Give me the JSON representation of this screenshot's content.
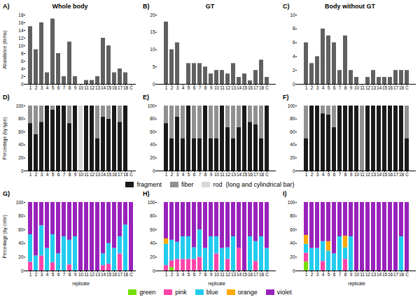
{
  "chart_data": [
    {
      "type": "bar",
      "title": "Whole body",
      "annotations": [
        {
          "text": "A)"
        }
      ],
      "ylabel": "Abundance (items)",
      "categories": [
        "1",
        "2",
        "3",
        "4",
        "5",
        "6",
        "7",
        "8",
        "9",
        "10",
        "11",
        "12",
        "13",
        "14",
        "15",
        "16",
        "17",
        "18",
        "C"
      ],
      "values": [
        15,
        9,
        16,
        3,
        17,
        8,
        2,
        11,
        2,
        0,
        1,
        1,
        2,
        12,
        10,
        3,
        4,
        3,
        0
      ],
      "color": "#606060",
      "ylim": [
        0,
        18
      ],
      "yticks": [
        0,
        2,
        4,
        6,
        8,
        10,
        12,
        14,
        16,
        18
      ],
      "grid": false
    },
    {
      "type": "bar",
      "title": "GT",
      "annotations": [
        {
          "text": "B)"
        }
      ],
      "categories": [
        "1",
        "2",
        "3",
        "4",
        "5",
        "6",
        "7",
        "8",
        "9",
        "10",
        "11",
        "12",
        "13",
        "14",
        "15",
        "16",
        "17",
        "18",
        "C"
      ],
      "values": [
        18,
        10,
        12,
        0,
        6,
        6,
        6,
        5,
        3,
        4,
        4,
        3,
        6,
        2,
        3,
        1,
        4,
        7,
        2
      ],
      "color": "#606060",
      "ylim": [
        0,
        20
      ],
      "yticks": [
        0,
        5,
        10,
        15,
        20
      ],
      "grid": false
    },
    {
      "type": "bar",
      "title": "Body without GT",
      "annotations": [
        {
          "text": "C)"
        }
      ],
      "categories": [
        "1",
        "2",
        "3",
        "4",
        "5",
        "6",
        "7",
        "8",
        "9",
        "10",
        "11",
        "12",
        "13",
        "14",
        "15",
        "16",
        "17",
        "18",
        "C"
      ],
      "values": [
        6,
        3,
        4,
        8,
        7,
        6,
        2,
        7,
        2,
        1,
        0,
        1,
        2,
        1,
        1,
        1,
        2,
        2,
        2
      ],
      "color": "#606060",
      "ylim": [
        0,
        10
      ],
      "yticks": [
        0,
        2,
        4,
        6,
        8,
        10
      ],
      "grid": false
    },
    {
      "type": "bar",
      "annotations": [
        {
          "text": "D)"
        }
      ],
      "ylabel": "Percentage (by type)",
      "stacked": true,
      "legend": "bottom",
      "categories": [
        "1",
        "2",
        "3",
        "4",
        "5",
        "6",
        "7",
        "8",
        "9",
        "10",
        "11",
        "12",
        "13",
        "14",
        "15",
        "16",
        "17",
        "18",
        "C"
      ],
      "series": [
        {
          "name": "fragment",
          "color": "#1a1a1a",
          "values": [
            73,
            56,
            75,
            100,
            94,
            100,
            100,
            73,
            100,
            0,
            100,
            100,
            50,
            83,
            80,
            100,
            75,
            100,
            0
          ]
        },
        {
          "name": "fiber",
          "color": "#909090",
          "values": [
            27,
            44,
            25,
            0,
            6,
            0,
            0,
            27,
            0,
            0,
            0,
            0,
            50,
            17,
            20,
            0,
            25,
            0,
            0
          ]
        },
        {
          "name": "rod  (long and cylindrical bar)",
          "color": "#d8d8d8",
          "values": [
            0,
            0,
            0,
            0,
            0,
            0,
            0,
            0,
            0,
            100,
            0,
            0,
            0,
            0,
            0,
            0,
            0,
            0,
            0
          ]
        }
      ],
      "ylim": [
        0,
        100
      ],
      "yticks": [
        0,
        20,
        40,
        60,
        80,
        100
      ],
      "grid": false
    },
    {
      "type": "bar",
      "annotations": [
        {
          "text": "E)"
        }
      ],
      "stacked": true,
      "legend": "bottom",
      "categories": [
        "1",
        "2",
        "3",
        "4",
        "5",
        "6",
        "7",
        "8",
        "9",
        "10",
        "11",
        "12",
        "13",
        "14",
        "15",
        "16",
        "17",
        "18",
        "C"
      ],
      "series": [
        {
          "name": "fragment",
          "color": "#1a1a1a",
          "values": [
            73,
            50,
            83,
            50,
            100,
            50,
            50,
            100,
            50,
            50,
            100,
            67,
            50,
            67,
            100,
            75,
            71,
            50,
            100
          ]
        },
        {
          "name": "fiber",
          "color": "#909090",
          "values": [
            27,
            50,
            17,
            50,
            0,
            50,
            50,
            0,
            50,
            50,
            0,
            33,
            50,
            33,
            0,
            25,
            29,
            50,
            0
          ]
        },
        {
          "name": "rod  (long and cylindrical bar)",
          "color": "#d8d8d8",
          "values": [
            0,
            0,
            0,
            0,
            0,
            0,
            0,
            0,
            0,
            0,
            0,
            0,
            0,
            0,
            0,
            0,
            0,
            0,
            0
          ]
        }
      ],
      "ylim": [
        0,
        100
      ],
      "yticks": [
        0,
        20,
        40,
        60,
        80,
        100
      ],
      "grid": false
    },
    {
      "type": "bar",
      "annotations": [
        {
          "text": "F)"
        }
      ],
      "stacked": true,
      "legend": "bottom",
      "categories": [
        "1",
        "2",
        "3",
        "4",
        "5",
        "6",
        "7",
        "8",
        "9",
        "10",
        "11",
        "12",
        "13",
        "14",
        "15",
        "16",
        "17",
        "18",
        "C"
      ],
      "series": [
        {
          "name": "fragment",
          "color": "#1a1a1a",
          "values": [
            50,
            100,
            100,
            88,
            86,
            67,
            100,
            100,
            100,
            100,
            0,
            100,
            100,
            100,
            100,
            100,
            100,
            100,
            50
          ]
        },
        {
          "name": "fiber",
          "color": "#909090",
          "values": [
            50,
            0,
            0,
            12,
            14,
            33,
            0,
            0,
            0,
            0,
            100,
            0,
            0,
            0,
            0,
            0,
            0,
            0,
            50
          ]
        },
        {
          "name": "rod  (long and cylindrical bar)",
          "color": "#d8d8d8",
          "values": [
            0,
            0,
            0,
            0,
            0,
            0,
            0,
            0,
            0,
            0,
            0,
            0,
            0,
            0,
            0,
            0,
            0,
            0,
            0
          ]
        }
      ],
      "ylim": [
        0,
        100
      ],
      "yticks": [
        0,
        20,
        40,
        60,
        80,
        100
      ],
      "grid": false
    },
    {
      "type": "bar",
      "annotations": [
        {
          "text": "G)"
        }
      ],
      "ylabel": "Percentage (by color)",
      "xlabel": "replicate",
      "stacked": true,
      "legend": "bottom",
      "categories": [
        "1",
        "2",
        "3",
        "4",
        "5",
        "6",
        "7",
        "8",
        "9",
        "10",
        "11",
        "12",
        "13",
        "14",
        "15",
        "16",
        "17",
        "18",
        "C"
      ],
      "series": [
        {
          "name": "green",
          "color": "#77dd00",
          "values": [
            0,
            0,
            0,
            0,
            0,
            0,
            0,
            0,
            0,
            0,
            0,
            0,
            0,
            0,
            0,
            0,
            0,
            0,
            0
          ]
        },
        {
          "name": "pink",
          "color": "#ff44aa",
          "values": [
            13,
            0,
            22,
            0,
            12,
            0,
            0,
            9,
            0,
            0,
            0,
            0,
            0,
            8,
            10,
            0,
            25,
            0,
            0
          ]
        },
        {
          "name": "blue",
          "color": "#22ccee",
          "values": [
            40,
            22,
            44,
            33,
            41,
            25,
            50,
            36,
            50,
            0,
            0,
            0,
            0,
            17,
            30,
            33,
            25,
            67,
            0
          ]
        },
        {
          "name": "orange",
          "color": "#ffaa00",
          "values": [
            0,
            0,
            0,
            0,
            0,
            0,
            0,
            0,
            0,
            0,
            0,
            0,
            0,
            0,
            0,
            0,
            0,
            0,
            0
          ]
        },
        {
          "name": "violet",
          "color": "#9922bb",
          "values": [
            47,
            78,
            34,
            67,
            47,
            75,
            50,
            55,
            50,
            100,
            100,
            100,
            100,
            75,
            60,
            67,
            50,
            33,
            100
          ]
        }
      ],
      "ylim": [
        0,
        100
      ],
      "yticks": [
        0,
        20,
        40,
        60,
        80,
        100
      ],
      "grid": false
    },
    {
      "type": "bar",
      "annotations": [
        {
          "text": "H)"
        }
      ],
      "xlabel": "replicate",
      "stacked": true,
      "legend": "bottom",
      "categories": [
        "1",
        "2",
        "3",
        "4",
        "5",
        "6",
        "7",
        "8",
        "9",
        "10",
        "11",
        "12",
        "13",
        "14",
        "15",
        "16",
        "17",
        "18",
        "C"
      ],
      "series": [
        {
          "name": "green",
          "color": "#77dd00",
          "values": [
            0,
            5,
            0,
            0,
            0,
            0,
            0,
            0,
            0,
            0,
            0,
            0,
            0,
            0,
            0,
            0,
            0,
            0,
            0
          ]
        },
        {
          "name": "pink",
          "color": "#ff44aa",
          "values": [
            8,
            10,
            17,
            17,
            17,
            17,
            20,
            0,
            0,
            25,
            0,
            17,
            0,
            33,
            0,
            0,
            14,
            0,
            0
          ]
        },
        {
          "name": "blue",
          "color": "#22ccee",
          "values": [
            31,
            30,
            25,
            33,
            33,
            17,
            40,
            33,
            50,
            25,
            33,
            17,
            50,
            0,
            0,
            50,
            29,
            50,
            33
          ]
        },
        {
          "name": "orange",
          "color": "#ffaa00",
          "values": [
            8,
            0,
            0,
            0,
            0,
            0,
            0,
            0,
            0,
            0,
            0,
            0,
            0,
            0,
            0,
            0,
            0,
            0,
            0
          ]
        },
        {
          "name": "violet",
          "color": "#9922bb",
          "values": [
            53,
            55,
            58,
            50,
            50,
            66,
            40,
            67,
            50,
            50,
            67,
            66,
            50,
            67,
            100,
            50,
            57,
            50,
            67
          ]
        }
      ],
      "ylim": [
        0,
        100
      ],
      "yticks": [
        0,
        20,
        40,
        60,
        80,
        100
      ],
      "grid": false
    },
    {
      "type": "bar",
      "annotations": [
        {
          "text": "I)"
        }
      ],
      "xlabel": "replicate",
      "stacked": true,
      "legend": "bottom",
      "categories": [
        "1",
        "2",
        "3",
        "4",
        "5",
        "6",
        "7",
        "8",
        "9",
        "10",
        "11",
        "12",
        "13",
        "14",
        "15",
        "16",
        "17",
        "18",
        "C"
      ],
      "series": [
        {
          "name": "green",
          "color": "#77dd00",
          "values": [
            13,
            0,
            0,
            0,
            0,
            0,
            0,
            0,
            0,
            0,
            0,
            0,
            0,
            0,
            0,
            0,
            0,
            0,
            0
          ]
        },
        {
          "name": "pink",
          "color": "#ff44aa",
          "values": [
            13,
            0,
            0,
            14,
            0,
            0,
            0,
            17,
            0,
            0,
            0,
            0,
            0,
            0,
            0,
            0,
            0,
            0,
            0
          ]
        },
        {
          "name": "blue",
          "color": "#22ccee",
          "values": [
            13,
            33,
            33,
            29,
            29,
            25,
            50,
            17,
            50,
            0,
            0,
            0,
            0,
            0,
            0,
            0,
            0,
            50,
            0
          ]
        },
        {
          "name": "orange",
          "color": "#ffaa00",
          "values": [
            13,
            0,
            0,
            0,
            14,
            0,
            0,
            17,
            0,
            0,
            0,
            0,
            0,
            0,
            0,
            0,
            0,
            0,
            0
          ]
        },
        {
          "name": "violet",
          "color": "#9922bb",
          "values": [
            48,
            67,
            67,
            57,
            57,
            75,
            50,
            49,
            50,
            100,
            100,
            100,
            100,
            100,
            100,
            100,
            100,
            50,
            100
          ]
        }
      ],
      "ylim": [
        0,
        100
      ],
      "yticks": [
        0,
        20,
        40,
        60,
        80,
        100
      ],
      "grid": false
    }
  ]
}
